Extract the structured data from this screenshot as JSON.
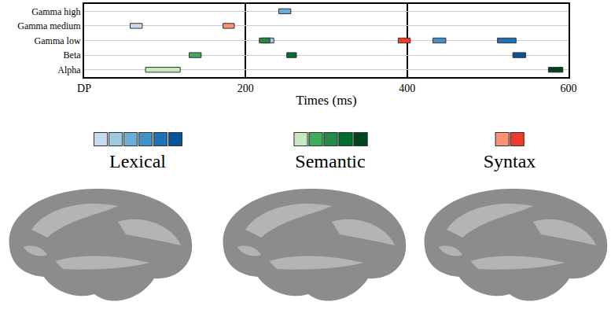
{
  "chart_data": {
    "type": "timeline",
    "xlabel": "Times (ms)",
    "categories": [
      "Alpha",
      "Beta",
      "Gamma low",
      "Gamma medium",
      "Gamma high"
    ],
    "xlim": [
      0,
      600
    ],
    "xticks": [
      {
        "value": 0,
        "label": "DP"
      },
      200,
      400,
      600
    ],
    "grid": true,
    "legend": "bottom",
    "series": [
      {
        "name": "Lexical",
        "colors": [
          "#c6dbef",
          "#9ecae1",
          "#6baed6",
          "#4292c6",
          "#2171b5",
          "#08519c"
        ],
        "bars": [
          {
            "band": "Gamma medium",
            "start": 57,
            "end": 72,
            "color": "#c6dbef"
          },
          {
            "band": "Gamma low",
            "start": 220,
            "end": 235,
            "color": "#9ecae1"
          },
          {
            "band": "Gamma high",
            "start": 241,
            "end": 256,
            "color": "#6baed6"
          },
          {
            "band": "Gamma low",
            "start": 432,
            "end": 448,
            "color": "#4292c6"
          },
          {
            "band": "Gamma low",
            "start": 512,
            "end": 535,
            "color": "#2171b5"
          },
          {
            "band": "Beta",
            "start": 531,
            "end": 547,
            "color": "#08519c"
          }
        ]
      },
      {
        "name": "Semantic",
        "colors": [
          "#c7e9c0",
          "#41ab5d",
          "#238b45",
          "#006d2c",
          "#00441b"
        ],
        "bars": [
          {
            "band": "Alpha",
            "start": 76,
            "end": 119,
            "color": "#c7e9c0"
          },
          {
            "band": "Beta",
            "start": 130,
            "end": 145,
            "color": "#41ab5d"
          },
          {
            "band": "Gamma low",
            "start": 217,
            "end": 230,
            "color": "#238b45"
          },
          {
            "band": "Beta",
            "start": 251,
            "end": 263,
            "color": "#006d2c"
          },
          {
            "band": "Alpha",
            "start": 575,
            "end": 593,
            "color": "#00441b"
          }
        ]
      },
      {
        "name": "Syntax",
        "colors": [
          "#fc9272",
          "#ef3b2c"
        ],
        "bars": [
          {
            "band": "Gamma medium",
            "start": 172,
            "end": 186,
            "color": "#fc9272"
          },
          {
            "band": "Gamma low",
            "start": 389,
            "end": 404,
            "color": "#ef3b2c"
          }
        ]
      }
    ]
  }
}
